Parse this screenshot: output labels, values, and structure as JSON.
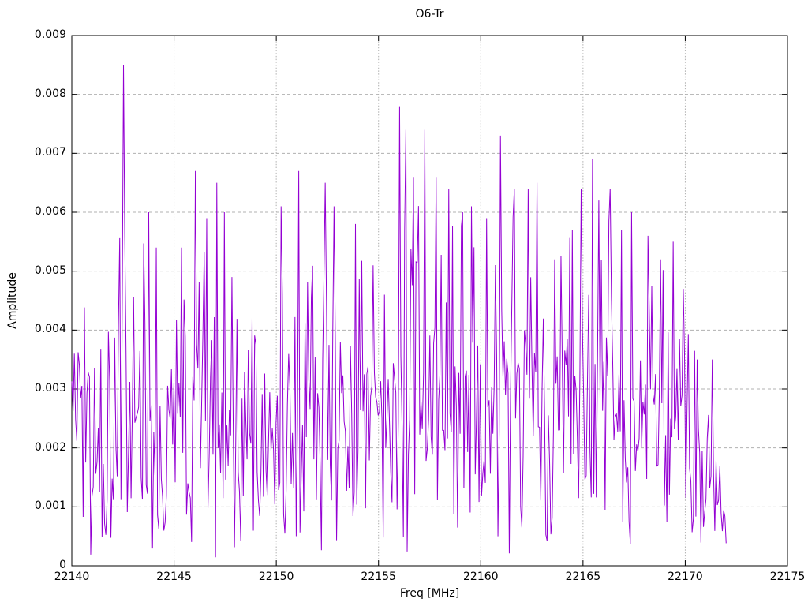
{
  "title": "O6-Tr",
  "xlabel": "Freq [MHz]",
  "ylabel": "Amplitude",
  "colors": {
    "trace": "#9400d3",
    "grid": "#b0b0b0",
    "axis": "#000000",
    "text": "#000000",
    "background": "#ffffff"
  },
  "chart_data": {
    "type": "line",
    "title": "O6-Tr",
    "xlabel": "Freq [MHz]",
    "ylabel": "Amplitude",
    "xlim": [
      22140,
      22175
    ],
    "ylim": [
      0,
      0.009
    ],
    "grid": true,
    "legend": "none",
    "x_ticks": [
      22140,
      22145,
      22150,
      22155,
      22160,
      22165,
      22170,
      22175
    ],
    "x_tick_labels": [
      "22140",
      "22145",
      "22150",
      "22155",
      "22160",
      "22165",
      "22170",
      "22175"
    ],
    "y_ticks": [
      0,
      0.001,
      0.002,
      0.003,
      0.004,
      0.005,
      0.006,
      0.007,
      0.008,
      0.009
    ],
    "y_tick_labels": [
      "0",
      "0.001",
      "0.002",
      "0.003",
      "0.004",
      "0.005",
      "0.006",
      "0.007",
      "0.008",
      "0.009"
    ],
    "line_color": "#9400d3",
    "x_start": 22140.0,
    "x_end": 22172.0,
    "n_points": 520,
    "noise_seed": 1742,
    "noise_model": "rayleigh",
    "noise_gain": 0.92,
    "noise_clip": 1.9,
    "min_amplitude": 0.00012,
    "envelope": [
      [
        22140.0,
        0.0022
      ],
      [
        22141.2,
        0.0028
      ],
      [
        22142.5,
        0.0034
      ],
      [
        22144.0,
        0.003
      ],
      [
        22145.5,
        0.0032
      ],
      [
        22147.0,
        0.0032
      ],
      [
        22148.3,
        0.0026
      ],
      [
        22149.6,
        0.0024
      ],
      [
        22150.8,
        0.0032
      ],
      [
        22152.5,
        0.0031
      ],
      [
        22154.0,
        0.0029
      ],
      [
        22155.5,
        0.0034
      ],
      [
        22157.0,
        0.0036
      ],
      [
        22158.5,
        0.0033
      ],
      [
        22160.0,
        0.0033
      ],
      [
        22161.5,
        0.0034
      ],
      [
        22163.0,
        0.0031
      ],
      [
        22164.5,
        0.0032
      ],
      [
        22166.0,
        0.0034
      ],
      [
        22167.5,
        0.0031
      ],
      [
        22169.0,
        0.0029
      ],
      [
        22170.0,
        0.0024
      ],
      [
        22170.8,
        0.0019
      ],
      [
        22171.5,
        0.0015
      ],
      [
        22172.0,
        0.0013
      ]
    ],
    "peaks": [
      [
        22140.1,
        0.0036
      ],
      [
        22142.3,
        0.0041
      ],
      [
        22142.55,
        0.0085
      ],
      [
        22142.62,
        0.0056
      ],
      [
        22143.75,
        0.006
      ],
      [
        22144.15,
        0.0054
      ],
      [
        22145.35,
        0.0054
      ],
      [
        22146.05,
        0.0067
      ],
      [
        22146.6,
        0.0059
      ],
      [
        22147.1,
        0.0065
      ],
      [
        22147.45,
        0.006
      ],
      [
        22147.8,
        0.0049
      ],
      [
        22148.8,
        0.0042
      ],
      [
        22150.25,
        0.0061
      ],
      [
        22151.1,
        0.0067
      ],
      [
        22152.4,
        0.0065
      ],
      [
        22152.85,
        0.0061
      ],
      [
        22153.85,
        0.0058
      ],
      [
        22154.75,
        0.0051
      ],
      [
        22155.3,
        0.0046
      ],
      [
        22156.05,
        0.0078
      ],
      [
        22156.35,
        0.0074
      ],
      [
        22156.7,
        0.0066
      ],
      [
        22157.25,
        0.0074
      ],
      [
        22157.8,
        0.0066
      ],
      [
        22158.45,
        0.0064
      ],
      [
        22159.1,
        0.006
      ],
      [
        22159.55,
        0.0061
      ],
      [
        22160.3,
        0.0059
      ],
      [
        22160.95,
        0.0073
      ],
      [
        22161.65,
        0.0064
      ],
      [
        22162.35,
        0.0064
      ],
      [
        22162.75,
        0.0065
      ],
      [
        22163.6,
        0.0052
      ],
      [
        22164.5,
        0.0057
      ],
      [
        22164.9,
        0.0064
      ],
      [
        22165.45,
        0.0069
      ],
      [
        22165.8,
        0.0062
      ],
      [
        22166.3,
        0.0064
      ],
      [
        22166.9,
        0.0057
      ],
      [
        22167.35,
        0.006
      ],
      [
        22168.2,
        0.0056
      ],
      [
        22168.8,
        0.0052
      ],
      [
        22169.4,
        0.0055
      ],
      [
        22169.9,
        0.0047
      ],
      [
        22170.6,
        0.0035
      ],
      [
        22171.3,
        0.0035
      ]
    ]
  }
}
